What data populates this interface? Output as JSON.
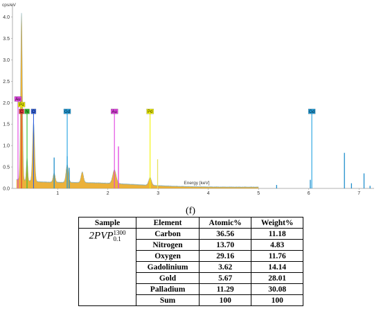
{
  "chart_data": {
    "type": "line",
    "ylabel": "cps/eV",
    "xlabel": "Energy [keV]",
    "xlim": [
      0.1,
      7.3
    ],
    "ylim": [
      0,
      4.3
    ],
    "x_ticks": [
      1,
      2,
      3,
      4,
      5,
      6,
      7
    ],
    "y_ticks": [
      0.0,
      0.5,
      1.0,
      1.5,
      2.0,
      2.5,
      3.0,
      3.5,
      4.0
    ],
    "y_tick_labels": [
      "0.0",
      "0.5",
      "1.0",
      "1.5",
      "2.0",
      "2.5",
      "3.0",
      "3.5",
      "4.0"
    ],
    "spectrum_color": "#e8a317",
    "peaks": [
      {
        "x": 0.28,
        "y": 3.9,
        "w": 0.025
      },
      {
        "x": 0.39,
        "y": 0.55,
        "w": 0.02
      },
      {
        "x": 0.52,
        "y": 1.4,
        "w": 0.03
      },
      {
        "x": 0.93,
        "y": 0.22,
        "w": 0.03
      },
      {
        "x": 1.19,
        "y": 0.42,
        "w": 0.035
      },
      {
        "x": 1.49,
        "y": 0.25,
        "w": 0.035
      },
      {
        "x": 2.13,
        "y": 0.32,
        "w": 0.05
      },
      {
        "x": 2.84,
        "y": 0.18,
        "w": 0.04
      }
    ],
    "stick_lines": [
      {
        "x": 0.93,
        "y": 0.72,
        "color": "#1f8fcc"
      },
      {
        "x": 1.19,
        "y": 0.75,
        "color": "#1f8fcc"
      },
      {
        "x": 1.23,
        "y": 0.48,
        "color": "#1f8fcc"
      },
      {
        "x": 2.21,
        "y": 0.98,
        "color": "#e040e0"
      },
      {
        "x": 2.99,
        "y": 0.68,
        "color": "#e6e060"
      },
      {
        "x": 5.36,
        "y": 0.08,
        "color": "#1f8fcc"
      },
      {
        "x": 6.03,
        "y": 0.2,
        "color": "#1f8fcc"
      },
      {
        "x": 6.71,
        "y": 0.83,
        "color": "#1f8fcc"
      },
      {
        "x": 6.85,
        "y": 0.12,
        "color": "#1f8fcc"
      },
      {
        "x": 7.1,
        "y": 0.35,
        "color": "#1f8fcc"
      },
      {
        "x": 7.22,
        "y": 0.06,
        "color": "#1f8fcc"
      }
    ],
    "element_markers": [
      {
        "label": "Au",
        "x": 0.21,
        "y": 2.03,
        "color": "#e040e0",
        "line_height": 2.03
      },
      {
        "label": "Pd",
        "x": 0.28,
        "y": 1.9,
        "color": "#f5f500",
        "line_height": 1.9
      },
      {
        "label": "C",
        "x": 0.28,
        "y": 1.74,
        "color": "#e03030",
        "line_height": 1.74
      },
      {
        "label": "N",
        "x": 0.39,
        "y": 1.74,
        "color": "#30c030",
        "line_height": 1.74
      },
      {
        "label": "O",
        "x": 0.52,
        "y": 1.74,
        "color": "#3060e0",
        "line_height": 1.74
      },
      {
        "label": "Gd",
        "x": 1.19,
        "y": 1.74,
        "color": "#1ea0e0",
        "line_height": 1.74
      },
      {
        "label": "Au",
        "x": 2.13,
        "y": 1.74,
        "color": "#e040e0",
        "line_height": 1.74
      },
      {
        "label": "Pd",
        "x": 2.84,
        "y": 1.74,
        "color": "#f5f500",
        "line_height": 1.74
      },
      {
        "label": "Gd",
        "x": 6.06,
        "y": 1.74,
        "color": "#1ea0e0",
        "line_height": 1.74
      }
    ]
  },
  "panel_label": "(f)",
  "table": {
    "headers": [
      "Sample",
      "Element",
      "Atomic%",
      "Weight%"
    ],
    "sample": {
      "main": "2PVP",
      "sup": "1300",
      "sub": "0.1"
    },
    "rows": [
      {
        "element": "Carbon",
        "atomic": "36.56",
        "weight": "11.18"
      },
      {
        "element": "Nitrogen",
        "atomic": "13.70",
        "weight": "4.83"
      },
      {
        "element": "Oxygen",
        "atomic": "29.16",
        "weight": "11.76"
      },
      {
        "element": "Gadolinium",
        "atomic": "3.62",
        "weight": "14.14"
      },
      {
        "element": "Gold",
        "atomic": "5.67",
        "weight": "28.01"
      },
      {
        "element": "Palladium",
        "atomic": "11.29",
        "weight": "30.08"
      },
      {
        "element": "Sum",
        "atomic": "100",
        "weight": "100"
      }
    ]
  }
}
